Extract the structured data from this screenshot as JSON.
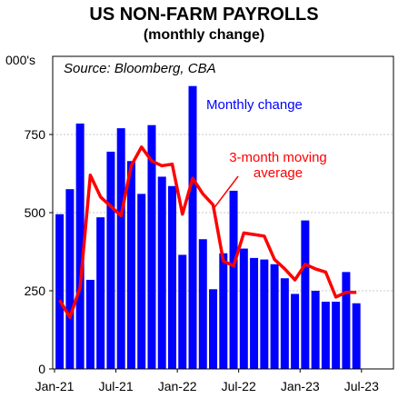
{
  "chart_data": {
    "type": "bar",
    "title": "US NON-FARM PAYROLLS",
    "subtitle": "(monthly change)",
    "ylabel": "000's",
    "source": "Source: Bloomberg, CBA",
    "ylim": [
      0,
      1000
    ],
    "yticks": [
      0,
      250,
      500,
      750
    ],
    "xticks": [
      "Jan-21",
      "Jul-21",
      "Jan-22",
      "Jul-22",
      "Jan-23",
      "Jul-23"
    ],
    "xtick_index": [
      0,
      6,
      12,
      18,
      24,
      30
    ],
    "categories": [
      "Jan-21",
      "Feb-21",
      "Mar-21",
      "Apr-21",
      "May-21",
      "Jun-21",
      "Jul-21",
      "Aug-21",
      "Sep-21",
      "Oct-21",
      "Nov-21",
      "Dec-21",
      "Jan-22",
      "Feb-22",
      "Mar-22",
      "Apr-22",
      "May-22",
      "Jun-22",
      "Jul-22",
      "Aug-22",
      "Sep-22",
      "Oct-22",
      "Nov-22",
      "Dec-22",
      "Jan-23",
      "Feb-23",
      "Mar-23",
      "Apr-23",
      "May-23",
      "Jun-23"
    ],
    "series": [
      {
        "name": "Monthly change",
        "kind": "bar",
        "color": "#0000ff",
        "values": [
          495,
          575,
          785,
          285,
          485,
          695,
          770,
          665,
          560,
          780,
          615,
          585,
          365,
          905,
          415,
          255,
          370,
          570,
          385,
          355,
          350,
          335,
          290,
          240,
          475,
          250,
          215,
          215,
          310,
          210
        ]
      },
      {
        "name": "3-month moving average",
        "kind": "line",
        "color": "#ff0000",
        "values": [
          220,
          165,
          260,
          620,
          550,
          520,
          490,
          650,
          710,
          665,
          650,
          655,
          495,
          610,
          560,
          525,
          345,
          330,
          435,
          430,
          425,
          350,
          320,
          285,
          335,
          320,
          310,
          230,
          245,
          245
        ]
      }
    ],
    "annotations": {
      "bar_label": "Monthly change",
      "line_label_1": "3-month moving",
      "line_label_2": "average"
    },
    "grid": "horizontal"
  }
}
